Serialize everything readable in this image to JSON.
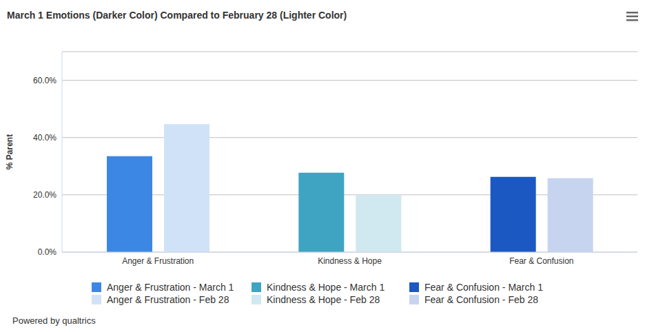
{
  "chart_data": {
    "type": "bar",
    "title": "March 1 Emotions (Darker Color) Compared to February 28 (Lighter Color)",
    "y_label": "% Parent",
    "categories": [
      "Anger & Frustration",
      "Kindness & Hope",
      "Fear & Confusion"
    ],
    "series": [
      {
        "name": "Anger & Frustration - March 1",
        "color": "#3d87e4",
        "values": [
          33.5,
          null,
          null
        ]
      },
      {
        "name": "Kindness & Hope - March 1",
        "color": "#3ea4c1",
        "values": [
          null,
          27.7,
          null
        ]
      },
      {
        "name": "Fear & Confusion - March 1",
        "color": "#1b58c2",
        "values": [
          null,
          null,
          26.3
        ]
      },
      {
        "name": "Anger & Frustration - Feb 28",
        "color": "#d0e2f7",
        "values": [
          44.7,
          null,
          null
        ]
      },
      {
        "name": "Kindness & Hope - Feb 28",
        "color": "#d0e8ef",
        "values": [
          null,
          19.9,
          null
        ]
      },
      {
        "name": "Fear & Confusion - Feb 28",
        "color": "#c6d4ef",
        "values": [
          null,
          null,
          25.8
        ]
      }
    ],
    "ylim": [
      0,
      70
    ],
    "yticks": [
      {
        "value": 0,
        "label": "0.0%"
      },
      {
        "value": 20,
        "label": "20.0%"
      },
      {
        "value": 40,
        "label": "40.0%"
      },
      {
        "value": 60,
        "label": "60.0%"
      }
    ],
    "grid": true,
    "legend": "bottom",
    "footer": "Powered by qualtrics"
  }
}
